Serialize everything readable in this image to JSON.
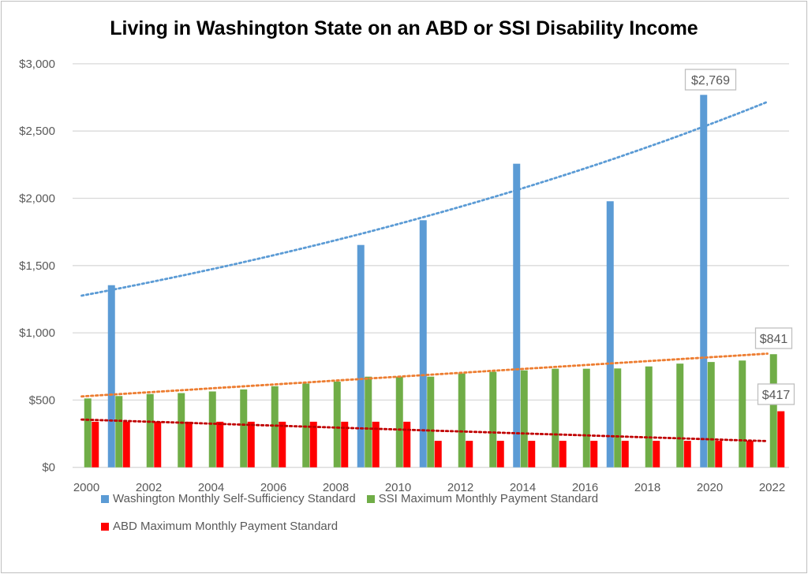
{
  "chart_data": {
    "type": "bar",
    "title": "Living in Washington State on an ABD or SSI Disability Income",
    "xlabel": "",
    "ylabel": "",
    "ylim": [
      0,
      3000
    ],
    "yticks": [
      "$0",
      "$500",
      "$1,000",
      "$1,500",
      "$2,000",
      "$2,500",
      "$3,000"
    ],
    "ytick_values": [
      0,
      500,
      1000,
      1500,
      2000,
      2500,
      3000
    ],
    "x_tick_labels": [
      "2000",
      "2002",
      "2004",
      "2006",
      "2008",
      "2010",
      "2012",
      "2014",
      "2016",
      "2018",
      "2020",
      "2022"
    ],
    "categories": [
      2000,
      2001,
      2002,
      2003,
      2004,
      2005,
      2006,
      2007,
      2008,
      2009,
      2010,
      2011,
      2012,
      2013,
      2014,
      2015,
      2016,
      2017,
      2018,
      2019,
      2020,
      2021,
      2022
    ],
    "grid": "horizontal",
    "legend_position": "bottom",
    "series": [
      {
        "name": "Washington Monthly Self-Sufficiency Standard",
        "color": "#5b9bd5",
        "values": [
          null,
          1354,
          null,
          null,
          null,
          null,
          null,
          null,
          null,
          1653,
          null,
          1837,
          null,
          null,
          2257,
          null,
          null,
          1978,
          null,
          null,
          2769,
          null,
          null
        ]
      },
      {
        "name": "SSI Maximum Monthly Payment Standard",
        "color": "#70ad47",
        "values": [
          512,
          530,
          545,
          552,
          564,
          579,
          603,
          623,
          637,
          674,
          674,
          674,
          698,
          710,
          721,
          733,
          733,
          735,
          750,
          771,
          783,
          794,
          841
        ]
      },
      {
        "name": "ABD Maximum Monthly Payment Standard",
        "color": "#ff0000",
        "values": [
          339,
          339,
          339,
          339,
          339,
          339,
          339,
          339,
          339,
          339,
          339,
          197,
          197,
          197,
          197,
          197,
          197,
          197,
          197,
          197,
          197,
          197,
          417
        ]
      }
    ],
    "trendlines": [
      {
        "series": "Washington Monthly Self-Sufficiency Standard",
        "kind": "exponential",
        "color": "#5b9bd5",
        "start": [
          2000,
          1276
        ],
        "end": [
          2022,
          2717
        ]
      },
      {
        "series": "SSI Maximum Monthly Payment Standard",
        "kind": "linear",
        "color": "#ed7d31",
        "start": [
          2000,
          527
        ],
        "end": [
          2022,
          845
        ]
      },
      {
        "series": "ABD Maximum Monthly Payment Standard",
        "kind": "linear",
        "color": "#c00000",
        "start": [
          2000,
          355
        ],
        "end": [
          2022,
          195
        ]
      }
    ],
    "data_labels": [
      {
        "series": "Washington Monthly Self-Sufficiency Standard",
        "x": 2020,
        "text": "$2,769"
      },
      {
        "series": "SSI Maximum Monthly Payment Standard",
        "x": 2022,
        "text": "$841"
      },
      {
        "series": "ABD Maximum Monthly Payment Standard",
        "x": 2022,
        "text": "$417"
      }
    ]
  }
}
